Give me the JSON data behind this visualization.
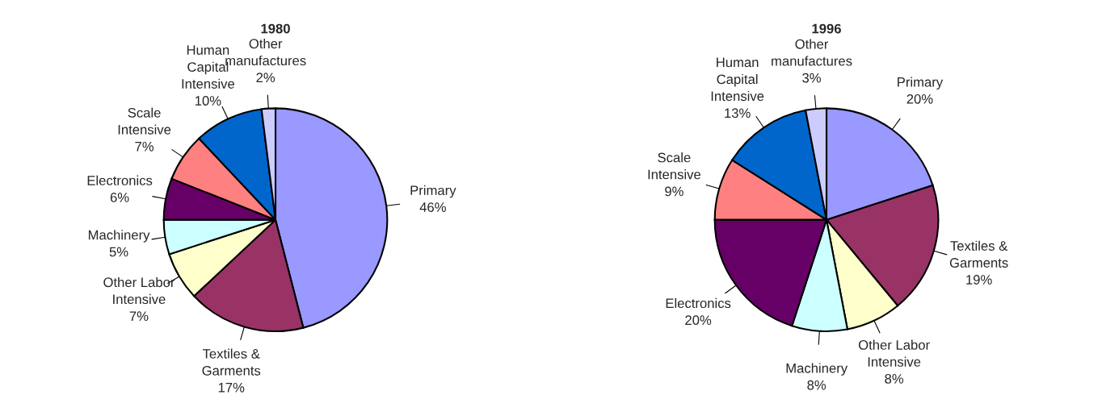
{
  "chart_data": [
    {
      "type": "pie",
      "title": "1980",
      "categories": [
        "Primary",
        "Textiles &\nGarments",
        "Other Labor\nIntensive",
        "Machinery",
        "Electronics",
        "Scale\nIntensive",
        "Human\nCapital\nIntensive",
        "Other\nmanufactures"
      ],
      "values": [
        46,
        17,
        7,
        5,
        6,
        7,
        10,
        2
      ],
      "value_labels": [
        "46%",
        "17%",
        "7%",
        "5%",
        "6%",
        "7%",
        "10%",
        "2%"
      ],
      "colors": [
        "#9999ff",
        "#993366",
        "#ffffcc",
        "#ccffff",
        "#660066",
        "#ff8080",
        "#0066cc",
        "#ccccff"
      ]
    },
    {
      "type": "pie",
      "title": "1996",
      "categories": [
        "Primary",
        "Textiles &\nGarments",
        "Other Labor\nIntensive",
        "Machinery",
        "Electronics",
        "Scale\nIntensive",
        "Human\nCapital\nIntensive",
        "Other\nmanufactures"
      ],
      "values": [
        20,
        19,
        8,
        8,
        20,
        9,
        13,
        3
      ],
      "value_labels": [
        "20%",
        "19%",
        "8%",
        "8%",
        "20%",
        "9%",
        "13%",
        "3%"
      ],
      "colors": [
        "#9999ff",
        "#993366",
        "#ffffcc",
        "#ccffff",
        "#660066",
        "#ff8080",
        "#0066cc",
        "#ccccff"
      ]
    }
  ]
}
